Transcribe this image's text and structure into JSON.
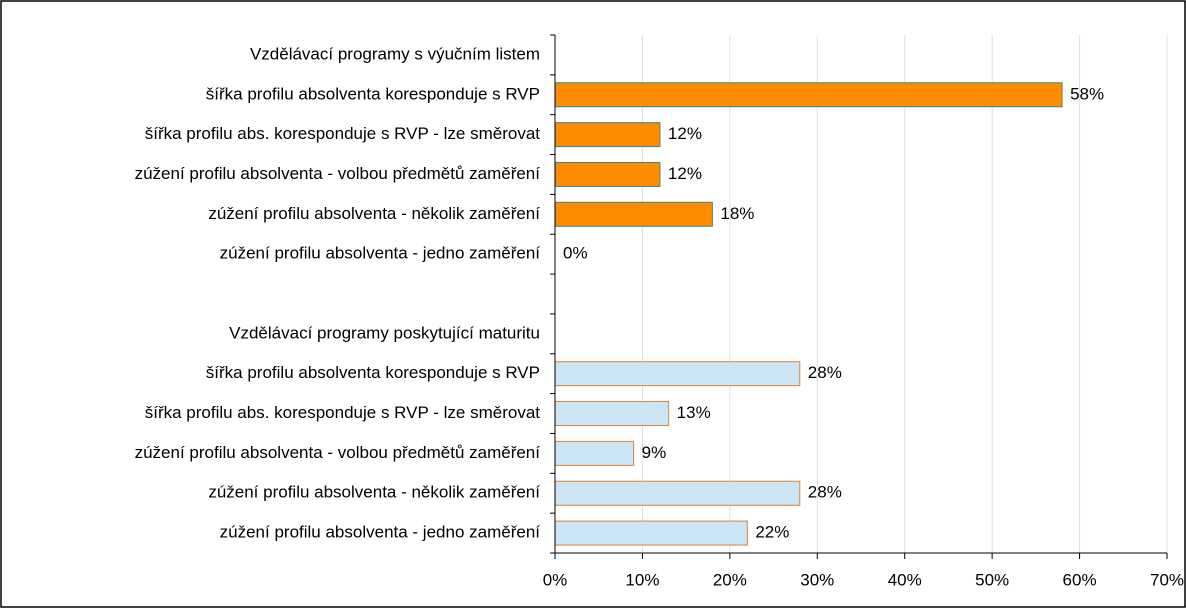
{
  "chart_data": {
    "type": "barh",
    "categories": [
      "Vzdělávací programy s výučním listem",
      "šířka profilu absolventa koresponduje s RVP",
      "šířka profilu abs. koresponduje s RVP - lze směrovat",
      "zúžení profilu absolventa - volbou předmětů zaměření",
      "zúžení profilu absolventa - několik zaměření",
      "zúžení profilu absolventa - jedno zaměření",
      null,
      "Vzdělávací programy poskytující maturitu",
      "šířka profilu absolventa koresponduje s RVP",
      "šířka profilu abs. koresponduje s RVP - lze směrovat",
      "zúžení profilu absolventa - volbou předmětů zaměření",
      "zúžení profilu absolventa - několik zaměření",
      "zúžení profilu absolventa - jedno zaměření"
    ],
    "series": [
      {
        "color": "#ff8c00",
        "edgecolor": "#2e8b9a",
        "values": [
          null,
          58,
          12,
          12,
          18,
          0,
          null,
          null,
          null,
          null,
          null,
          null,
          null
        ],
        "value_labels": [
          null,
          "58%",
          "12%",
          "12%",
          "18%",
          "0%",
          null,
          null,
          null,
          null,
          null,
          null,
          null
        ]
      },
      {
        "color": "#cce5f5",
        "edgecolor": "#e08030",
        "values": [
          null,
          null,
          null,
          null,
          null,
          null,
          null,
          null,
          28,
          13,
          9,
          28,
          22
        ],
        "value_labels": [
          null,
          null,
          null,
          null,
          null,
          null,
          null,
          null,
          "28%",
          "13%",
          "9%",
          "28%",
          "22%"
        ]
      }
    ],
    "xlim": [
      0,
      70
    ],
    "xticks": [
      {
        "value": 0,
        "label": "0%"
      },
      {
        "value": 10,
        "label": "10%"
      },
      {
        "value": 20,
        "label": "20%"
      },
      {
        "value": 30,
        "label": "30%"
      },
      {
        "value": 40,
        "label": "40%"
      },
      {
        "value": 50,
        "label": "50%"
      },
      {
        "value": 60,
        "label": "60%"
      },
      {
        "value": 70,
        "label": "70%"
      }
    ],
    "grid": true
  }
}
